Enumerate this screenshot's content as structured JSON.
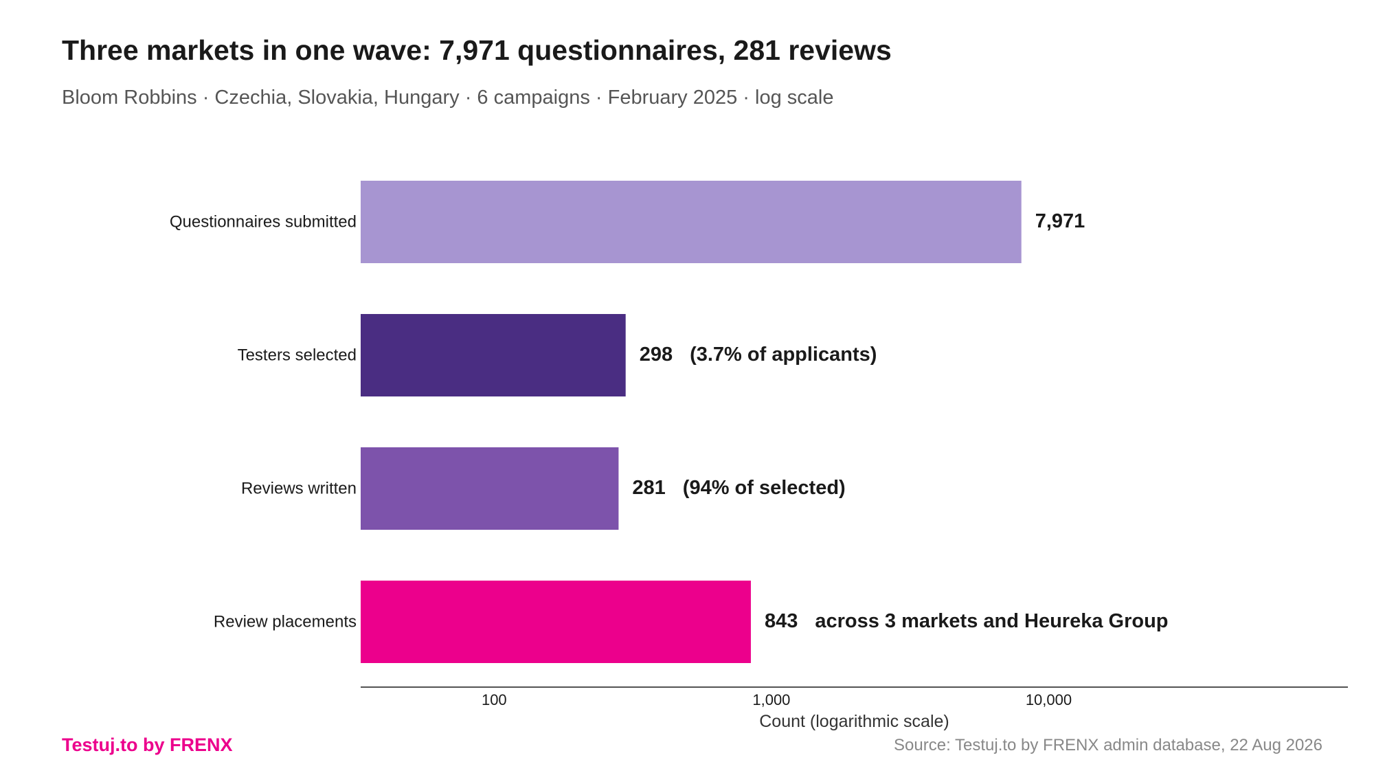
{
  "title": "Three markets in one wave: 7,971 questionnaires, 281 reviews",
  "subtitle": "Bloom Robbins · Czechia, Slovakia, Hungary · 6 campaigns · February 2025 · log scale",
  "brand": {
    "text": "Testuj.to by FRENX",
    "color": "#ec008c"
  },
  "source": "Source: Testuj.to by FRENX admin database, 22 Aug 2026",
  "chart_data": {
    "type": "bar",
    "orientation": "horizontal",
    "scale": "log",
    "categories": [
      "Questionnaires submitted",
      "Testers selected",
      "Reviews written",
      "Review placements"
    ],
    "values": [
      7971,
      298,
      281,
      843
    ],
    "value_labels": [
      "7,971",
      "298",
      "281",
      "843"
    ],
    "annotations": [
      "",
      "(3.7% of applicants)",
      "(94% of selected)",
      "across 3 markets and Heureka Group"
    ],
    "colors": [
      "#a795d1",
      "#4a2d82",
      "#7d53ab",
      "#ec008c"
    ],
    "xlabel": "Count (logarithmic scale)",
    "ylabel": "",
    "xticks": [
      100,
      1000,
      10000
    ],
    "xtick_labels": [
      "100",
      "1,000",
      "10,000"
    ],
    "xlim": [
      33,
      120000
    ],
    "grid": false,
    "legend": "none"
  }
}
